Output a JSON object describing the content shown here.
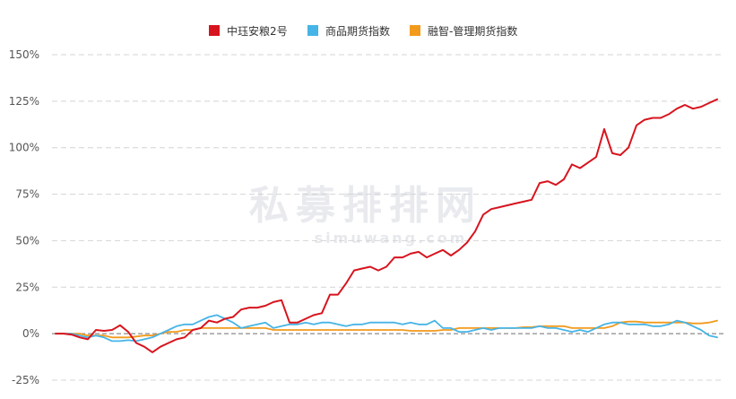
{
  "watermark": {
    "main": "私募排排网",
    "url": "simuwang.com"
  },
  "chart_data": {
    "type": "line",
    "title": "",
    "xlabel": "",
    "ylabel": "",
    "y_unit": "%",
    "ylim": [
      -25,
      150
    ],
    "y_ticks": [
      -25,
      0,
      25,
      50,
      75,
      100,
      125,
      150
    ],
    "y_tick_labels": [
      "-25%",
      "0%",
      "25%",
      "50%",
      "75%",
      "100%",
      "125%",
      "150%"
    ],
    "grid": "horizontal dashed",
    "legend_position": "top-center",
    "baseline": 0,
    "x_count": 83,
    "series": [
      {
        "name": "中珏安粮2号",
        "color": "#d7141e",
        "values": [
          0,
          0,
          -0.5,
          -2,
          -3,
          2,
          1.5,
          2,
          4.5,
          1,
          -5,
          -7,
          -10,
          -7,
          -5,
          -3,
          -2,
          2,
          3,
          7,
          6,
          8,
          9,
          13,
          14,
          14,
          15,
          17,
          18,
          6,
          6,
          8,
          10,
          11,
          21,
          21,
          27,
          34,
          35,
          36,
          34,
          36,
          41,
          41,
          43,
          44,
          41,
          43,
          45,
          42,
          45,
          49,
          55,
          64,
          67,
          68,
          69,
          70,
          71,
          72,
          81,
          82,
          80,
          83,
          91,
          89,
          92,
          95,
          110,
          97,
          96,
          100,
          112,
          115,
          116,
          116,
          118,
          121,
          123,
          121,
          122,
          124,
          126
        ]
      },
      {
        "name": "商品期货指数",
        "color": "#46b4e6",
        "values": [
          0,
          0,
          0,
          -1,
          -2,
          -1,
          -2,
          -4,
          -4,
          -3.5,
          -4,
          -3,
          -2,
          0,
          2,
          4,
          5,
          5,
          7,
          9,
          10,
          8,
          6,
          3,
          4,
          5,
          6,
          3,
          4,
          5,
          5,
          6,
          5,
          6,
          6,
          5,
          4,
          5,
          5,
          6,
          6,
          6,
          6,
          5,
          6,
          5,
          5,
          7,
          3,
          3,
          1,
          1,
          2,
          3,
          2,
          3,
          3,
          3,
          3,
          3,
          4,
          3,
          3,
          2,
          1,
          2,
          1,
          3,
          5,
          6,
          6,
          5,
          5,
          5,
          4,
          4,
          5,
          7,
          6,
          4,
          2,
          -1,
          -2
        ]
      },
      {
        "name": "融智-管理期货指数",
        "color": "#f29a1c",
        "values": [
          0,
          0,
          0,
          0,
          -1,
          -1,
          -1,
          -2,
          -2,
          -2,
          -1.5,
          -1,
          -1,
          0,
          1,
          1,
          2,
          2,
          3,
          3,
          3,
          3,
          3,
          3,
          3,
          3,
          3,
          2,
          2,
          2,
          2,
          2,
          2,
          2,
          2,
          2,
          2,
          2,
          2,
          2,
          2,
          2,
          2,
          2,
          1.5,
          1.5,
          1.5,
          1.5,
          2,
          2,
          3,
          3,
          3,
          3,
          3,
          3,
          3,
          3,
          3.5,
          3.5,
          4,
          4,
          4,
          4,
          3,
          3,
          3,
          3,
          3,
          4,
          6,
          6.5,
          6.5,
          6,
          6,
          6,
          6,
          6,
          6,
          5.5,
          5.5,
          6,
          7
        ]
      }
    ]
  }
}
